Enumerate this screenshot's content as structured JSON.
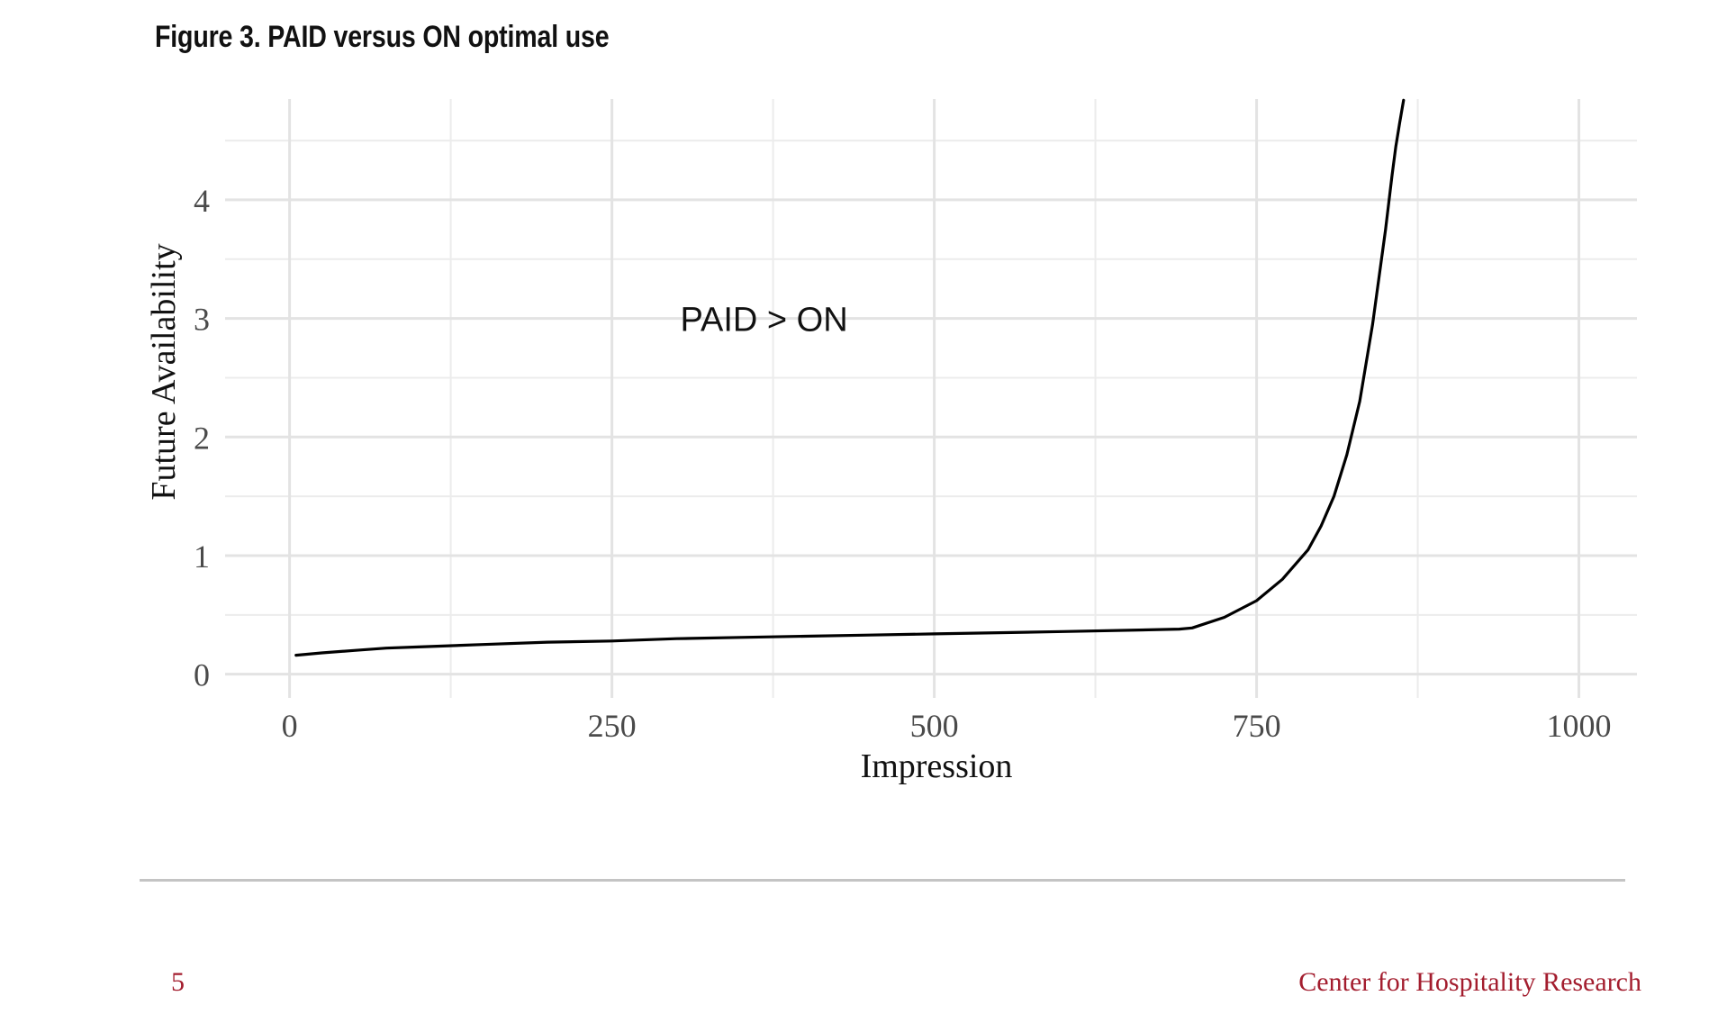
{
  "figure": {
    "title": "Figure 3. PAID versus ON optimal use"
  },
  "chart_data": {
    "type": "line",
    "title": "",
    "xlabel": "Impression",
    "ylabel": "Future Availability",
    "xlim": [
      -50,
      1045
    ],
    "ylim": [
      -0.2,
      4.85
    ],
    "x_ticks": [
      0,
      250,
      500,
      750,
      1000
    ],
    "x_tick_labels": [
      "0",
      "250",
      "500",
      "750",
      "1000"
    ],
    "y_ticks": [
      0,
      1,
      2,
      3,
      4
    ],
    "y_tick_labels": [
      "0",
      "1",
      "2",
      "3",
      "4"
    ],
    "grid": true,
    "legend": "none",
    "line_color": "#000000",
    "annotations": [
      {
        "text": "PAID > ON",
        "x": 368,
        "y": 3.0
      }
    ],
    "series": [
      {
        "x": [
          5,
          25,
          50,
          75,
          100,
          150,
          200,
          250,
          300,
          350,
          400,
          450,
          500,
          550,
          600,
          650,
          690,
          700,
          725,
          750,
          770,
          790,
          800,
          810,
          820,
          830,
          840,
          845,
          850,
          855,
          858,
          861,
          864
        ],
        "values": [
          0.16,
          0.18,
          0.2,
          0.22,
          0.23,
          0.25,
          0.27,
          0.28,
          0.3,
          0.31,
          0.32,
          0.33,
          0.34,
          0.35,
          0.36,
          0.37,
          0.38,
          0.39,
          0.48,
          0.62,
          0.8,
          1.05,
          1.25,
          1.5,
          1.85,
          2.3,
          2.95,
          3.35,
          3.75,
          4.2,
          4.45,
          4.65,
          4.84
        ]
      }
    ]
  },
  "footer": {
    "page_number": "5",
    "organization": "Center for Hospitality Research"
  }
}
